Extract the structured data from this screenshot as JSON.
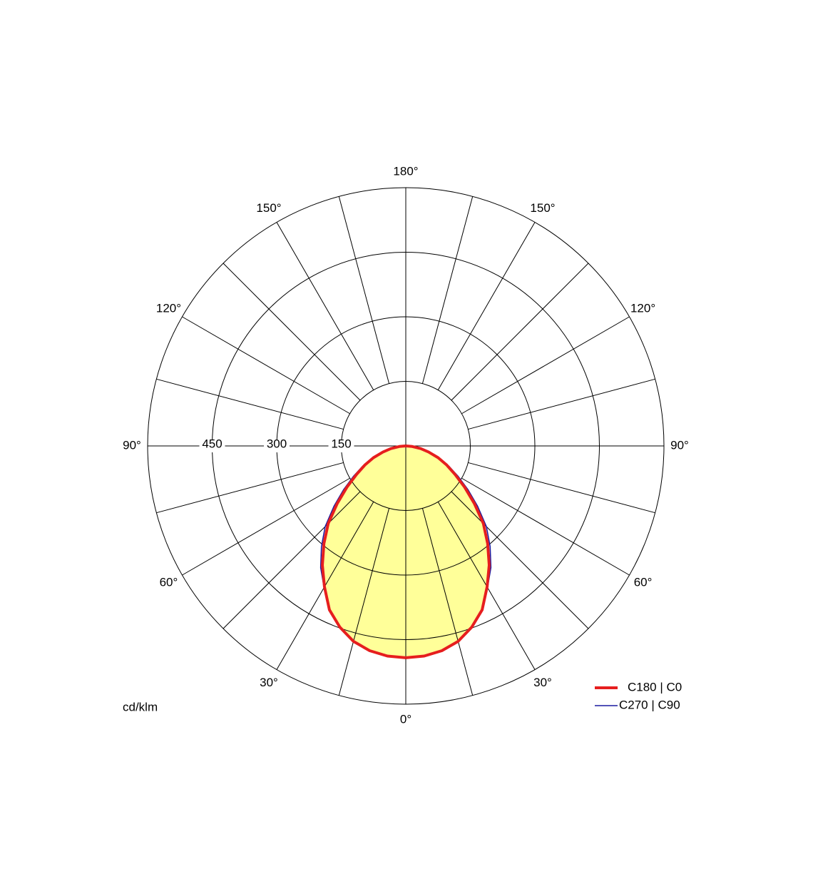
{
  "chart_data": {
    "type": "polar",
    "unit_label": "cd/klm",
    "angles": [
      0,
      5,
      10,
      15,
      20,
      25,
      30,
      35,
      40,
      45,
      50,
      55,
      60,
      65,
      70,
      75,
      80,
      85,
      90
    ],
    "series": [
      {
        "name": "C270 | C90",
        "color": "#1a1aa0",
        "values": [
          492,
          490,
          483,
          470,
          449,
          421,
          380,
          345,
          305,
          265,
          218,
          176,
          140,
          110,
          82,
          56,
          35,
          15,
          0
        ]
      },
      {
        "name": "C180 | C0",
        "color": "#e61e1e",
        "fill": "#ffff99",
        "values": [
          492,
          490,
          483,
          470,
          448,
          420,
          378,
          338,
          296,
          255,
          208,
          167,
          132,
          105,
          80,
          55,
          35,
          15,
          0
        ]
      }
    ],
    "rlim": [
      0,
      600
    ],
    "rticks": [
      150,
      300,
      450
    ],
    "angle_ticks": [
      {
        "value": 0,
        "label": "0°"
      },
      {
        "value": 30,
        "label": "30°"
      },
      {
        "value": 60,
        "label": "60°"
      },
      {
        "value": 90,
        "label": "90°"
      },
      {
        "value": 120,
        "label": "120°"
      },
      {
        "value": 150,
        "label": "150°"
      },
      {
        "value": 180,
        "label": "180°"
      }
    ]
  }
}
